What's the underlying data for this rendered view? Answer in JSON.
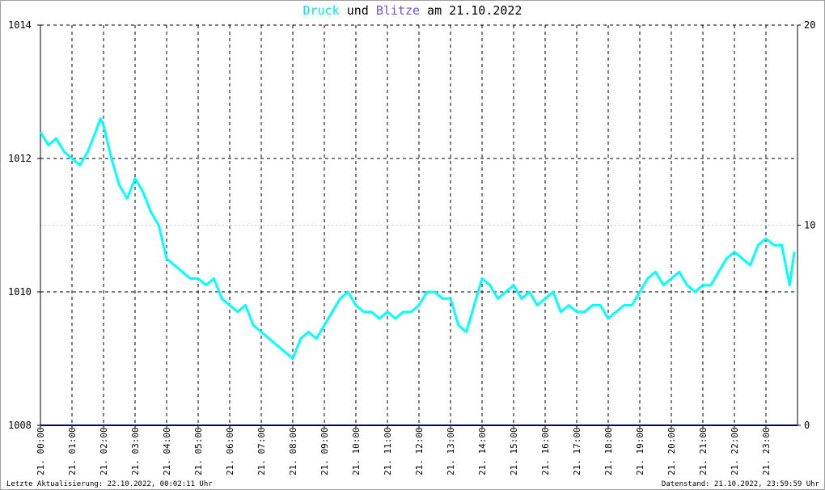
{
  "chart_data": {
    "type": "line",
    "title_parts": [
      {
        "text": "Druck",
        "color": "#00e6e6"
      },
      {
        "text": " und ",
        "color": "#000000"
      },
      {
        "text": "Blitze",
        "color": "#6a5acd"
      },
      {
        "text": " am 21.10.2022",
        "color": "#000000"
      }
    ],
    "y_left": {
      "min": 1008,
      "max": 1014,
      "ticks": [
        "1008",
        "1010",
        "1012",
        "1014"
      ]
    },
    "y_right": {
      "min": 0,
      "max": 20,
      "ticks": [
        "0",
        "10",
        "20"
      ]
    },
    "x_ticks": [
      "21. 00:00",
      "21. 01:00",
      "21. 02:00",
      "21. 03:00",
      "21. 04:00",
      "21. 05:00",
      "21. 06:00",
      "21. 07:00",
      "21. 08:00",
      "21. 09:00",
      "21. 10:00",
      "21. 11:00",
      "21. 12:00",
      "21. 13:00",
      "21. 14:00",
      "21. 15:00",
      "21. 16:00",
      "21. 17:00",
      "21. 18:00",
      "21. 19:00",
      "21. 20:00",
      "21. 21:00",
      "21. 22:00",
      "21. 23:00"
    ],
    "x_range_hours": [
      0,
      24
    ],
    "series": [
      {
        "name": "Druck",
        "axis": "left",
        "color": "#00ffff",
        "x_hours": [
          0,
          0.25,
          0.5,
          0.75,
          1,
          1.25,
          1.5,
          1.75,
          1.9,
          2,
          2.25,
          2.5,
          2.75,
          3,
          3.25,
          3.5,
          3.75,
          4,
          4.25,
          4.5,
          4.75,
          5,
          5.25,
          5.5,
          5.75,
          6,
          6.25,
          6.5,
          6.75,
          7,
          7.25,
          7.5,
          7.75,
          8,
          8.25,
          8.5,
          8.75,
          9,
          9.25,
          9.5,
          9.75,
          10,
          10.25,
          10.5,
          10.75,
          11,
          11.25,
          11.5,
          11.75,
          12,
          12.25,
          12.5,
          12.75,
          13,
          13.25,
          13.5,
          13.75,
          14,
          14.25,
          14.5,
          14.75,
          15,
          15.25,
          15.5,
          15.75,
          16,
          16.25,
          16.5,
          16.75,
          17,
          17.25,
          17.5,
          17.75,
          18,
          18.25,
          18.5,
          18.75,
          19,
          19.25,
          19.5,
          19.75,
          20,
          20.25,
          20.5,
          20.75,
          21,
          21.25,
          21.5,
          21.75,
          22,
          22.25,
          22.5,
          22.75,
          23,
          23.25,
          23.5,
          23.75,
          23.9
        ],
        "values": [
          1012.4,
          1012.2,
          1012.3,
          1012.1,
          1012.0,
          1011.9,
          1012.1,
          1012.4,
          1012.6,
          1012.5,
          1012.0,
          1011.6,
          1011.4,
          1011.7,
          1011.5,
          1011.2,
          1011.0,
          1010.5,
          1010.4,
          1010.3,
          1010.2,
          1010.2,
          1010.1,
          1010.2,
          1009.9,
          1009.8,
          1009.7,
          1009.8,
          1009.5,
          1009.4,
          1009.3,
          1009.2,
          1009.1,
          1009.0,
          1009.3,
          1009.4,
          1009.3,
          1009.5,
          1009.7,
          1009.9,
          1010.0,
          1009.8,
          1009.7,
          1009.7,
          1009.6,
          1009.7,
          1009.6,
          1009.7,
          1009.7,
          1009.8,
          1010.0,
          1010.0,
          1009.9,
          1009.9,
          1009.5,
          1009.4,
          1009.8,
          1010.2,
          1010.1,
          1009.9,
          1010.0,
          1010.1,
          1009.9,
          1010.0,
          1009.8,
          1009.9,
          1010.0,
          1009.7,
          1009.8,
          1009.7,
          1009.7,
          1009.8,
          1009.8,
          1009.6,
          1009.7,
          1009.8,
          1009.8,
          1010.0,
          1010.2,
          1010.3,
          1010.1,
          1010.2,
          1010.3,
          1010.1,
          1010.0,
          1010.1,
          1010.1,
          1010.3,
          1010.5,
          1010.6,
          1010.5,
          1010.4,
          1010.7,
          1010.8,
          1010.7,
          1010.7,
          1010.1,
          1010.6
        ]
      },
      {
        "name": "Blitze",
        "axis": "right",
        "color": "#000080",
        "x_hours": [
          0,
          24
        ],
        "values": [
          0,
          0
        ]
      }
    ],
    "grid": true
  },
  "footer": {
    "left": "Letzte Aktualisierung: 22.10.2022, 00:02:11 Uhr",
    "right": "Datenstand: 21.10.2022, 23:59:59 Uhr"
  },
  "colors": {
    "grid": "#000000",
    "minor_grid": "#c8c8c8",
    "frame": "#a0a0a0"
  }
}
